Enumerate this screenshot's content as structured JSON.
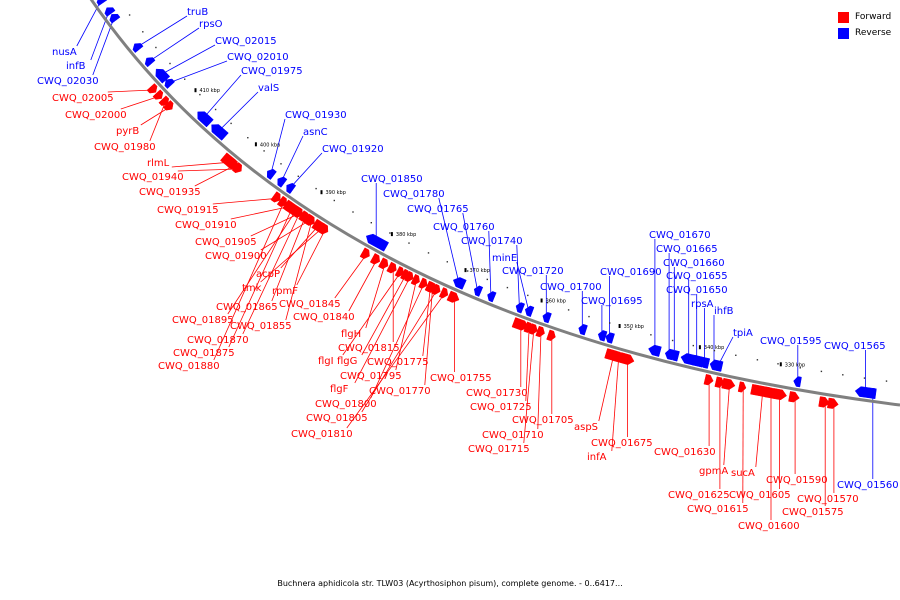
{
  "colors": {
    "forward": "#ff0000",
    "reverse": "#0000ff",
    "backbone": "#808080"
  },
  "legend": {
    "forward": "Forward",
    "reverse": "Reverse"
  },
  "caption": "Buchnera aphidicola str. TLW03 (Acyrthosiphon pisum), complete genome. - 0..6417...",
  "ticks": [
    {
      "label": "410 kbp",
      "pos": 2
    },
    {
      "label": "400 kbp",
      "pos": 3
    },
    {
      "label": "390 kbp",
      "pos": 4
    },
    {
      "label": "380 kbp",
      "pos": 5
    },
    {
      "label": "370 kbp",
      "pos": 6
    },
    {
      "label": "360 kbp",
      "pos": 7
    },
    {
      "label": "350 kbp",
      "pos": 8
    },
    {
      "label": "340 kbp",
      "pos": 9
    },
    {
      "label": "330 kbp",
      "pos": 10
    }
  ],
  "genes": [
    {
      "name": "truB",
      "strand": "reverse"
    },
    {
      "name": "rpsO",
      "strand": "reverse"
    },
    {
      "name": "CWQ_02015",
      "strand": "reverse"
    },
    {
      "name": "nusA",
      "strand": "reverse"
    },
    {
      "name": "CWQ_02010",
      "strand": "reverse"
    },
    {
      "name": "infB",
      "strand": "reverse"
    },
    {
      "name": "CWQ_01975",
      "strand": "reverse"
    },
    {
      "name": "CWQ_02030",
      "strand": "reverse"
    },
    {
      "name": "valS",
      "strand": "reverse"
    },
    {
      "name": "CWQ_02005",
      "strand": "forward"
    },
    {
      "name": "CWQ_02000",
      "strand": "forward"
    },
    {
      "name": "pyrB",
      "strand": "forward"
    },
    {
      "name": "CWQ_01930",
      "strand": "reverse"
    },
    {
      "name": "asnC",
      "strand": "reverse"
    },
    {
      "name": "CWQ_01980",
      "strand": "forward"
    },
    {
      "name": "CWQ_01920",
      "strand": "reverse"
    },
    {
      "name": "rlmL",
      "strand": "forward"
    },
    {
      "name": "CWQ_01940",
      "strand": "forward"
    },
    {
      "name": "CWQ_01850",
      "strand": "reverse"
    },
    {
      "name": "CWQ_01935",
      "strand": "forward"
    },
    {
      "name": "CWQ_01780",
      "strand": "reverse"
    },
    {
      "name": "CWQ_01915",
      "strand": "forward"
    },
    {
      "name": "CWQ_01765",
      "strand": "reverse"
    },
    {
      "name": "CWQ_01910",
      "strand": "forward"
    },
    {
      "name": "CWQ_01760",
      "strand": "reverse"
    },
    {
      "name": "CWQ_01905",
      "strand": "forward"
    },
    {
      "name": "CWQ_01740",
      "strand": "reverse"
    },
    {
      "name": "CWQ_01670",
      "strand": "reverse"
    },
    {
      "name": "CWQ_01665",
      "strand": "reverse"
    },
    {
      "name": "CWQ_01900",
      "strand": "forward"
    },
    {
      "name": "minE",
      "strand": "reverse"
    },
    {
      "name": "CWQ_01660",
      "strand": "reverse"
    },
    {
      "name": "CWQ_01720",
      "strand": "reverse"
    },
    {
      "name": "CWQ_01690",
      "strand": "reverse"
    },
    {
      "name": "acpP",
      "strand": "forward"
    },
    {
      "name": "CWQ_01655",
      "strand": "reverse"
    },
    {
      "name": "tmk",
      "strand": "forward"
    },
    {
      "name": "rpmF",
      "strand": "forward"
    },
    {
      "name": "CWQ_01700",
      "strand": "reverse"
    },
    {
      "name": "CWQ_01650",
      "strand": "reverse"
    },
    {
      "name": "CWQ_01865",
      "strand": "forward"
    },
    {
      "name": "CWQ_01845",
      "strand": "forward"
    },
    {
      "name": "CWQ_01695",
      "strand": "reverse"
    },
    {
      "name": "rpsA",
      "strand": "reverse"
    },
    {
      "name": "CWQ_01895",
      "strand": "forward"
    },
    {
      "name": "CWQ_01840",
      "strand": "forward"
    },
    {
      "name": "ihfB",
      "strand": "reverse"
    },
    {
      "name": "CWQ_01855",
      "strand": "forward"
    },
    {
      "name": "flgH",
      "strand": "forward"
    },
    {
      "name": "tpiA",
      "strand": "reverse"
    },
    {
      "name": "CWQ_01870",
      "strand": "forward"
    },
    {
      "name": "CWQ_01595",
      "strand": "reverse"
    },
    {
      "name": "CWQ_01565",
      "strand": "reverse"
    },
    {
      "name": "CWQ_01815",
      "strand": "forward"
    },
    {
      "name": "CWQ_01875",
      "strand": "forward"
    },
    {
      "name": "flgI",
      "strand": "forward"
    },
    {
      "name": "flgG",
      "strand": "forward"
    },
    {
      "name": "CWQ_01775",
      "strand": "forward"
    },
    {
      "name": "CWQ_01880",
      "strand": "forward"
    },
    {
      "name": "CWQ_01795",
      "strand": "forward"
    },
    {
      "name": "CWQ_01755",
      "strand": "forward"
    },
    {
      "name": "flgF",
      "strand": "forward"
    },
    {
      "name": "CWQ_01770",
      "strand": "forward"
    },
    {
      "name": "CWQ_01730",
      "strand": "forward"
    },
    {
      "name": "CWQ_01800",
      "strand": "forward"
    },
    {
      "name": "CWQ_01725",
      "strand": "forward"
    },
    {
      "name": "CWQ_01805",
      "strand": "forward"
    },
    {
      "name": "CWQ_01705",
      "strand": "forward"
    },
    {
      "name": "aspS",
      "strand": "forward"
    },
    {
      "name": "CWQ_01810",
      "strand": "forward"
    },
    {
      "name": "CWQ_01710",
      "strand": "forward"
    },
    {
      "name": "CWQ_01675",
      "strand": "forward"
    },
    {
      "name": "CWQ_01715",
      "strand": "forward"
    },
    {
      "name": "CWQ_01630",
      "strand": "forward"
    },
    {
      "name": "infA",
      "strand": "forward"
    },
    {
      "name": "gpmA",
      "strand": "forward"
    },
    {
      "name": "sucA",
      "strand": "forward"
    },
    {
      "name": "CWQ_01590",
      "strand": "forward"
    },
    {
      "name": "CWQ_01560",
      "strand": "reverse"
    },
    {
      "name": "CWQ_01625",
      "strand": "forward"
    },
    {
      "name": "CWQ_01605",
      "strand": "forward"
    },
    {
      "name": "CWQ_01570",
      "strand": "forward"
    },
    {
      "name": "CWQ_01615",
      "strand": "forward"
    },
    {
      "name": "CWQ_01575",
      "strand": "forward"
    },
    {
      "name": "CWQ_01600",
      "strand": "forward"
    }
  ]
}
